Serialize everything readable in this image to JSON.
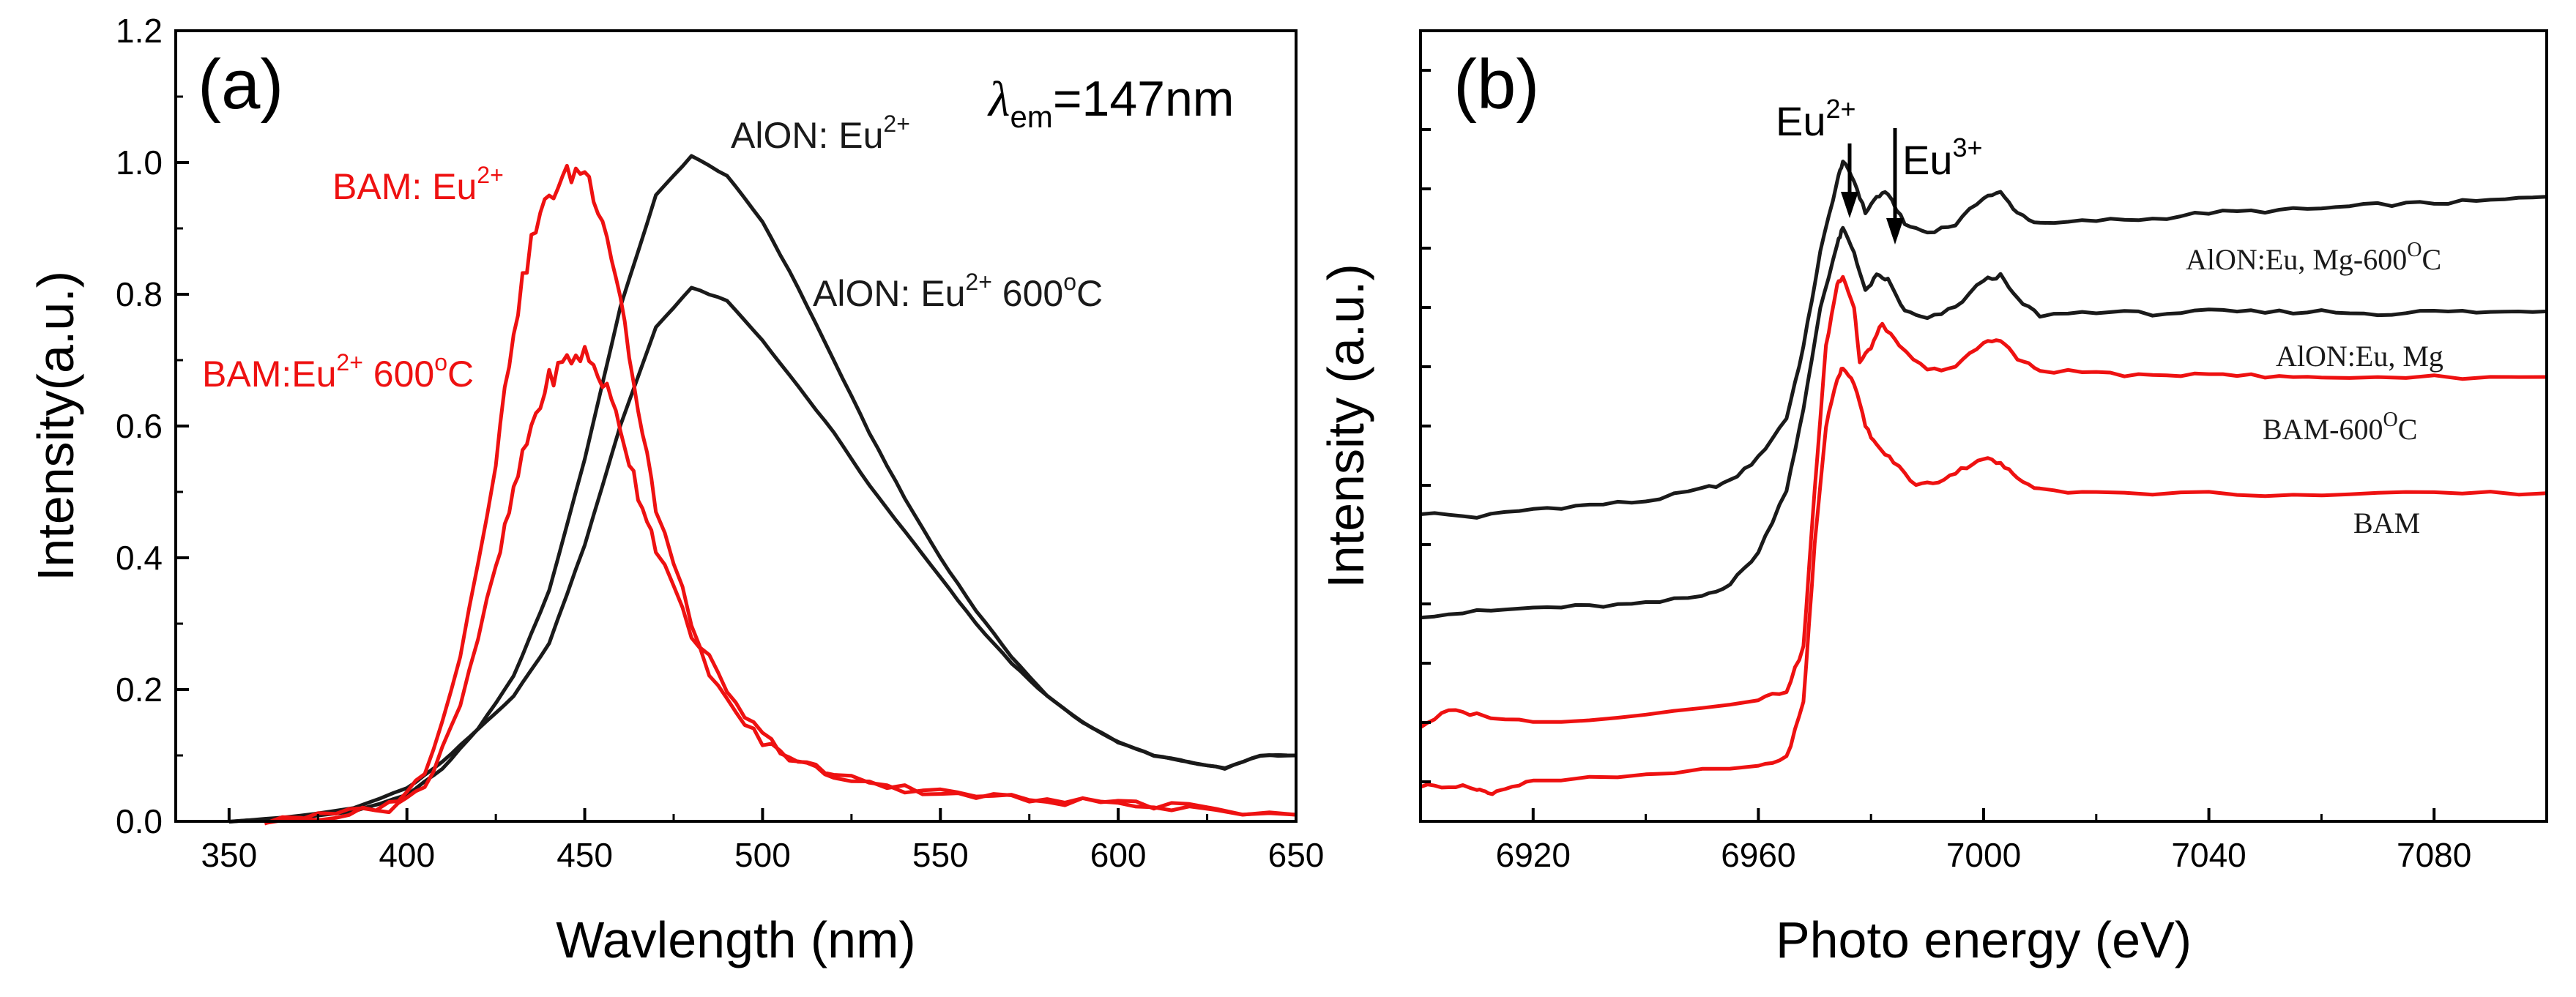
{
  "chart_data": [
    {
      "type": "line",
      "panel_label": "(a)",
      "xlabel": "Wavlength (nm)",
      "ylabel": "Intensity(a.u.)",
      "xlim": [
        335,
        650
      ],
      "ylim": [
        0,
        1.2
      ],
      "xticks": [
        350,
        400,
        450,
        500,
        550,
        600,
        650
      ],
      "yticks": [
        "0.0",
        "0.2",
        "0.4",
        "0.6",
        "0.8",
        "1.0",
        "1.2"
      ],
      "annotation": {
        "lambda": "λ",
        "sub": "em",
        "value": "=147nm"
      },
      "series": [
        {
          "name": "AlON: Eu2+",
          "color": "#1a1a1a",
          "label_text": "AlON: Eu",
          "label_sup": "2+",
          "x": [
            350,
            370,
            385,
            400,
            410,
            420,
            430,
            440,
            450,
            460,
            470,
            480,
            490,
            500,
            510,
            520,
            530,
            540,
            550,
            560,
            570,
            580,
            590,
            600,
            610,
            620,
            630,
            640,
            650
          ],
          "y": [
            0.0,
            0.005,
            0.015,
            0.04,
            0.08,
            0.14,
            0.22,
            0.35,
            0.55,
            0.78,
            0.95,
            1.01,
            0.98,
            0.91,
            0.81,
            0.7,
            0.59,
            0.49,
            0.4,
            0.32,
            0.25,
            0.19,
            0.15,
            0.12,
            0.1,
            0.09,
            0.08,
            0.1,
            0.1
          ]
        },
        {
          "name": "AlON: Eu2+ 600oC",
          "color": "#1a1a1a",
          "label_text": "AlON: Eu",
          "label_sup": "2+",
          "label_tail": " 600",
          "label_sup2": "o",
          "label_end": "C",
          "x": [
            350,
            370,
            385,
            400,
            410,
            420,
            430,
            440,
            450,
            460,
            470,
            480,
            490,
            500,
            510,
            520,
            530,
            540,
            550,
            560,
            570,
            580,
            590,
            600,
            610,
            620,
            630,
            640,
            650
          ],
          "y": [
            0.0,
            0.008,
            0.02,
            0.05,
            0.09,
            0.14,
            0.19,
            0.27,
            0.42,
            0.6,
            0.75,
            0.81,
            0.79,
            0.73,
            0.66,
            0.59,
            0.51,
            0.44,
            0.37,
            0.3,
            0.24,
            0.19,
            0.15,
            0.12,
            0.1,
            0.09,
            0.08,
            0.1,
            0.1
          ]
        },
        {
          "name": "BAM: Eu2+",
          "color": "#ee1111",
          "label_text": "BAM: Eu",
          "label_sup": "2+",
          "x": [
            360,
            380,
            395,
            405,
            415,
            425,
            430,
            435,
            440,
            445,
            450,
            455,
            460,
            465,
            470,
            480,
            490,
            500,
            510,
            520,
            540,
            560,
            580,
            600,
            620,
            650
          ],
          "y": [
            0.0,
            0.01,
            0.025,
            0.07,
            0.25,
            0.55,
            0.75,
            0.88,
            0.95,
            0.98,
            0.99,
            0.92,
            0.8,
            0.62,
            0.48,
            0.3,
            0.19,
            0.13,
            0.09,
            0.07,
            0.05,
            0.04,
            0.03,
            0.03,
            0.02,
            0.01
          ]
        },
        {
          "name": "BAM:Eu2+ 600oC",
          "color": "#ee1111",
          "label_text": "BAM:Eu",
          "label_sup": "2+",
          "label_tail": " 600",
          "label_sup2": "o",
          "label_end": "C",
          "x": [
            360,
            380,
            395,
            405,
            415,
            425,
            430,
            435,
            440,
            445,
            450,
            455,
            460,
            465,
            470,
            480,
            490,
            500,
            510,
            520,
            540,
            560,
            580,
            600,
            620,
            650
          ],
          "y": [
            0.0,
            0.01,
            0.02,
            0.05,
            0.18,
            0.38,
            0.5,
            0.6,
            0.67,
            0.7,
            0.71,
            0.67,
            0.6,
            0.5,
            0.42,
            0.28,
            0.18,
            0.12,
            0.09,
            0.07,
            0.05,
            0.04,
            0.03,
            0.03,
            0.02,
            0.01
          ]
        }
      ]
    },
    {
      "type": "line",
      "panel_label": "(b)",
      "xlabel": "Photo energy (eV)",
      "ylabel": "Intensity (a.u.)",
      "xlim": [
        6900,
        7100
      ],
      "ylim": [
        0,
        10
      ],
      "xticks": [
        6920,
        6960,
        7000,
        7040,
        7080
      ],
      "annotations": [
        {
          "text": "Eu",
          "sup": "2+",
          "x": 6975
        },
        {
          "text": "Eu",
          "sup": "3+",
          "x": 6982
        }
      ],
      "series": [
        {
          "name": "AlON:Eu, Mg-600OC",
          "color": "#1a1a1a",
          "label_text": "AlON:Eu, Mg-600",
          "label_sup": "O",
          "label_end": "C",
          "x": [
            6900,
            6910,
            6920,
            6930,
            6940,
            6950,
            6955,
            6960,
            6965,
            6968,
            6971,
            6974,
            6975,
            6977,
            6979,
            6981,
            6983,
            6986,
            6990,
            6995,
            7000,
            7003,
            7006,
            7010,
            7020,
            7030,
            7040,
            7050,
            7060,
            7070,
            7080,
            7090,
            7100
          ],
          "y": [
            3.9,
            3.85,
            3.95,
            4.0,
            4.05,
            4.2,
            4.3,
            4.6,
            5.1,
            6.0,
            7.2,
            8.1,
            8.35,
            8.1,
            7.7,
            7.9,
            7.95,
            7.55,
            7.45,
            7.55,
            7.9,
            7.95,
            7.7,
            7.55,
            7.6,
            7.62,
            7.7,
            7.72,
            7.75,
            7.8,
            7.82,
            7.85,
            7.9
          ]
        },
        {
          "name": "AlON:Eu, Mg",
          "color": "#1a1a1a",
          "label_text": "AlON:Eu, Mg",
          "x": [
            6900,
            6910,
            6920,
            6930,
            6940,
            6950,
            6955,
            6960,
            6965,
            6968,
            6971,
            6974,
            6975,
            6977,
            6979,
            6981,
            6983,
            6986,
            6990,
            6995,
            7000,
            7003,
            7006,
            7010,
            7020,
            7030,
            7040,
            7050,
            7060,
            7070,
            7080,
            7090,
            7100
          ],
          "y": [
            2.6,
            2.65,
            2.7,
            2.72,
            2.75,
            2.85,
            3.0,
            3.4,
            4.2,
            5.2,
            6.5,
            7.3,
            7.5,
            7.2,
            6.7,
            6.9,
            6.85,
            6.45,
            6.35,
            6.5,
            6.85,
            6.9,
            6.6,
            6.4,
            6.45,
            6.42,
            6.45,
            6.44,
            6.45,
            6.42,
            6.45,
            6.44,
            6.45
          ]
        },
        {
          "name": "BAM-600OC",
          "color": "#ee1111",
          "label_text": "BAM-600",
          "label_sup": "O",
          "label_end": "C",
          "x": [
            6900,
            6905,
            6910,
            6920,
            6940,
            6960,
            6965,
            6968,
            6970,
            6972,
            6974,
            6975,
            6977,
            6978,
            6980,
            6982,
            6985,
            6990,
            6995,
            7000,
            7003,
            7006,
            7010,
            7020,
            7030,
            7040,
            7050,
            7060,
            7080,
            7100
          ],
          "y": [
            1.2,
            1.4,
            1.35,
            1.25,
            1.35,
            1.55,
            1.65,
            2.2,
            4.2,
            6.0,
            6.8,
            6.9,
            6.5,
            5.8,
            6.0,
            6.3,
            6.0,
            5.7,
            5.75,
            6.05,
            6.1,
            5.85,
            5.7,
            5.68,
            5.62,
            5.68,
            5.62,
            5.62,
            5.62,
            5.62
          ]
        },
        {
          "name": "BAM",
          "color": "#ee1111",
          "label_text": "BAM",
          "x": [
            6900,
            6905,
            6910,
            6912,
            6915,
            6920,
            6940,
            6960,
            6965,
            6968,
            6970,
            6972,
            6974,
            6975,
            6977,
            6979,
            6981,
            6984,
            6988,
            6992,
            6996,
            7000,
            7003,
            7006,
            7010,
            7020,
            7040,
            7060,
            7080,
            7100
          ],
          "y": [
            0.45,
            0.45,
            0.42,
            0.35,
            0.42,
            0.5,
            0.58,
            0.7,
            0.8,
            1.5,
            3.5,
            5.0,
            5.6,
            5.75,
            5.55,
            5.0,
            4.75,
            4.55,
            4.25,
            4.3,
            4.45,
            4.6,
            4.52,
            4.35,
            4.2,
            4.15,
            4.15,
            4.12,
            4.15,
            4.15
          ]
        }
      ]
    }
  ]
}
